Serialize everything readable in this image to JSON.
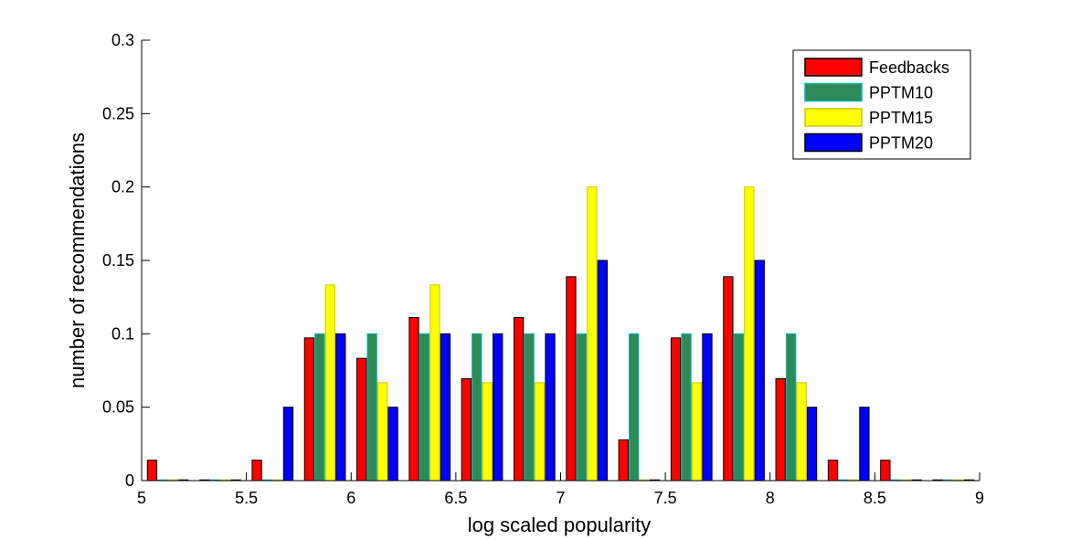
{
  "chart_data": {
    "type": "bar",
    "xlabel": "log scaled popularity",
    "ylabel": "number of recommendations",
    "xlim": [
      5,
      9
    ],
    "ylim": [
      0,
      0.3
    ],
    "x_ticks": [
      "5",
      "5.5",
      "6",
      "6.5",
      "7",
      "7.5",
      "8",
      "8.5",
      "9"
    ],
    "y_ticks": [
      "0",
      "0.05",
      "0.1",
      "0.15",
      "0.2",
      "0.25",
      "0.3"
    ],
    "bin_centers": [
      5.125,
      5.375,
      5.625,
      5.875,
      6.125,
      6.375,
      6.625,
      6.875,
      7.125,
      7.375,
      7.625,
      7.875,
      8.125,
      8.375,
      8.625,
      8.875
    ],
    "legend_position": "top-right",
    "series": [
      {
        "name": "Feedbacks",
        "color": "#ff0000",
        "edge": "#000000",
        "values": [
          0.0139,
          0,
          0.0139,
          0.0972,
          0.0833,
          0.1111,
          0.0694,
          0.1111,
          0.1389,
          0.0278,
          0.0972,
          0.1389,
          0.0694,
          0.0139,
          0.0139,
          0
        ]
      },
      {
        "name": "PPTM10",
        "color": "#2e8b57",
        "edge": "#00b3b3",
        "values": [
          0,
          0,
          0,
          0.1,
          0.1,
          0.1,
          0.1,
          0.1,
          0.1,
          0.1,
          0.1,
          0.1,
          0.1,
          0,
          0,
          0
        ]
      },
      {
        "name": "PPTM15",
        "color": "#ffff00",
        "edge": "#c8c800",
        "values": [
          0,
          0,
          0,
          0.1333,
          0.0667,
          0.1333,
          0.0667,
          0.0667,
          0.2,
          0,
          0.0667,
          0.2,
          0.0667,
          0,
          0,
          0
        ]
      },
      {
        "name": "PPTM20",
        "color": "#0000ff",
        "edge": "#000000",
        "values": [
          0,
          0,
          0.05,
          0.1,
          0.05,
          0.1,
          0.1,
          0.1,
          0.15,
          0,
          0.1,
          0.15,
          0.05,
          0.05,
          0,
          0
        ]
      }
    ]
  }
}
